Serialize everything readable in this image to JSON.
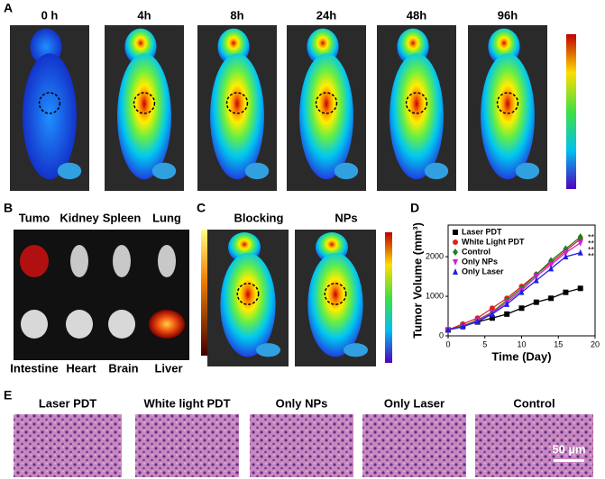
{
  "panels": {
    "A": {
      "label": "A",
      "times": [
        "0 h",
        "4h",
        "8h",
        "24h",
        "48h",
        "96h"
      ]
    },
    "B": {
      "label": "B",
      "top": [
        "Tumo",
        "Kidney",
        "Spleen",
        "Lung"
      ],
      "bottom": [
        "Intestine",
        "Heart",
        "Brain",
        "Liver"
      ]
    },
    "C": {
      "label": "C",
      "groups": [
        "Blocking",
        "NPs"
      ]
    },
    "D": {
      "label": "D",
      "significance": [
        "**",
        "**",
        "**",
        "**"
      ]
    },
    "E": {
      "label": "E",
      "groups": [
        "Laser PDT",
        "White light PDT",
        "Only NPs",
        "Only Laser",
        "Control"
      ],
      "scale_bar": "50 µm"
    }
  },
  "chart_data": {
    "type": "line",
    "x_label": "Time (Day)",
    "y_label": "Tumor Volume (mm³)",
    "x": [
      0,
      2,
      4,
      6,
      8,
      10,
      12,
      14,
      16,
      18
    ],
    "series": [
      {
        "name": "Laser PDT",
        "color": "#000000",
        "marker": "square",
        "values": [
          150,
          250,
          350,
          450,
          550,
          700,
          850,
          950,
          1100,
          1200
        ]
      },
      {
        "name": "White Light PDT",
        "color": "#e02020",
        "marker": "circle",
        "values": [
          150,
          300,
          450,
          700,
          950,
          1250,
          1550,
          1850,
          2150,
          2450
        ]
      },
      {
        "name": "Control",
        "color": "#208020",
        "marker": "diamond",
        "values": [
          150,
          250,
          400,
          600,
          900,
          1200,
          1550,
          1900,
          2200,
          2500
        ]
      },
      {
        "name": "Only NPs",
        "color": "#d020d0",
        "marker": "triangle-down",
        "values": [
          150,
          230,
          380,
          580,
          850,
          1150,
          1500,
          1800,
          2100,
          2350
        ]
      },
      {
        "name": "Only Laser",
        "color": "#2020e0",
        "marker": "triangle",
        "values": [
          150,
          230,
          360,
          550,
          800,
          1100,
          1400,
          1700,
          2000,
          2100
        ]
      }
    ],
    "xlim": [
      0,
      20
    ],
    "xticks": [
      0,
      5,
      10,
      15,
      20
    ],
    "ylim": [
      0,
      2800
    ],
    "yticks": [
      0,
      1000,
      2000
    ]
  }
}
